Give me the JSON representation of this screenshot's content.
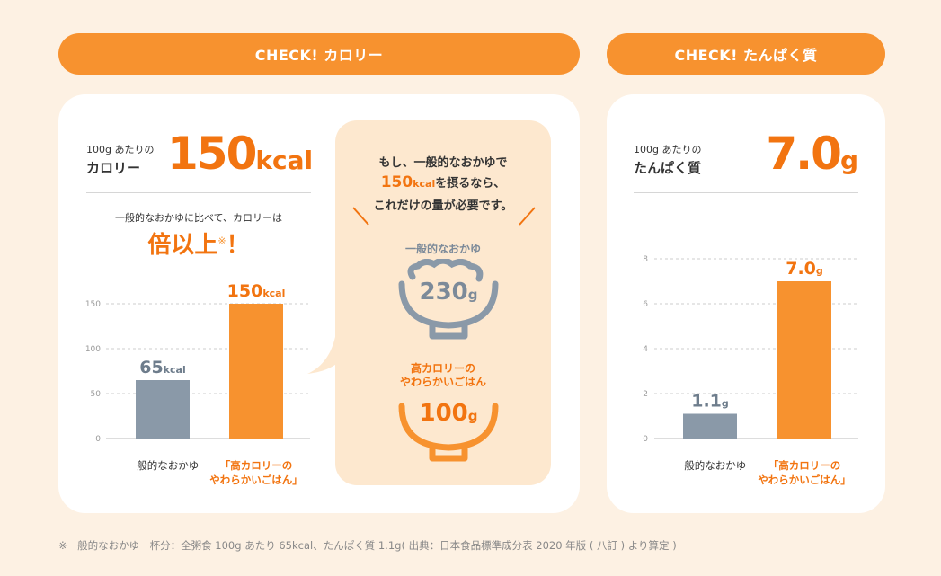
{
  "left_header": "CHECK! カロリー",
  "right_header": "CHECK! たんぱく質",
  "calorie": {
    "per_label": "100g あたりの",
    "name_label": "カロリー",
    "value": "150",
    "unit": "kcal",
    "compare_text": "一般的なおかゆに比べて、カロリーは",
    "highlight_main": "倍以上",
    "highlight_mark": "※",
    "highlight_excl": "！"
  },
  "bubble": {
    "line1": "もし、一般的なおかゆで",
    "line2_value": "150",
    "line2_unit": "kcal",
    "line2_rest": "を摂るなら、",
    "line3": "これだけの量が必要です。",
    "bowl1_label": "一般的なおかゆ",
    "bowl1_value": "230",
    "bowl1_unit": "g",
    "bowl2_label_line1": "高カロリーの",
    "bowl2_label_line2": "やわらかいごはん",
    "bowl2_value": "100",
    "bowl2_unit": "g"
  },
  "protein": {
    "per_label": "100g あたりの",
    "name_label": "たんぱく質",
    "value": "7.0",
    "unit": "g"
  },
  "colors": {
    "orange": "#f7922f",
    "dark_orange": "#f27410",
    "grey_blue": "#8a99a8",
    "bg": "#fdf1e3"
  },
  "chart_data": [
    {
      "type": "bar",
      "categories": [
        "一般的なおかゆ",
        "「高カロリーの\nやわらかいごはん」"
      ],
      "category_lines": [
        [
          "一般的なおかゆ"
        ],
        [
          "「高カロリーの",
          "やわらかいごはん」"
        ]
      ],
      "values": [
        65,
        150
      ],
      "value_labels": [
        "65",
        "150"
      ],
      "unit": "kcal",
      "yticks": [
        0,
        50,
        100,
        150
      ],
      "ylim": [
        0,
        160
      ],
      "grid": true
    },
    {
      "type": "bar",
      "categories": [
        "一般的なおかゆ",
        "「高カロリーの\nやわらかいごはん」"
      ],
      "category_lines": [
        [
          "一般的なおかゆ"
        ],
        [
          "「高カロリーの",
          "やわらかいごはん」"
        ]
      ],
      "values": [
        1.1,
        7.0
      ],
      "value_labels": [
        "1.1",
        "7.0"
      ],
      "unit": "g",
      "yticks": [
        0,
        2,
        4,
        6,
        8
      ],
      "ylim": [
        0,
        8
      ],
      "grid": true
    }
  ],
  "footnote": "※一般的なおかゆ一杯分：全粥食 100g あたり 65kcal、たんぱく質 1.1g( 出典：日本食品標準成分表 2020 年版 ( 八訂 ) より算定 )"
}
